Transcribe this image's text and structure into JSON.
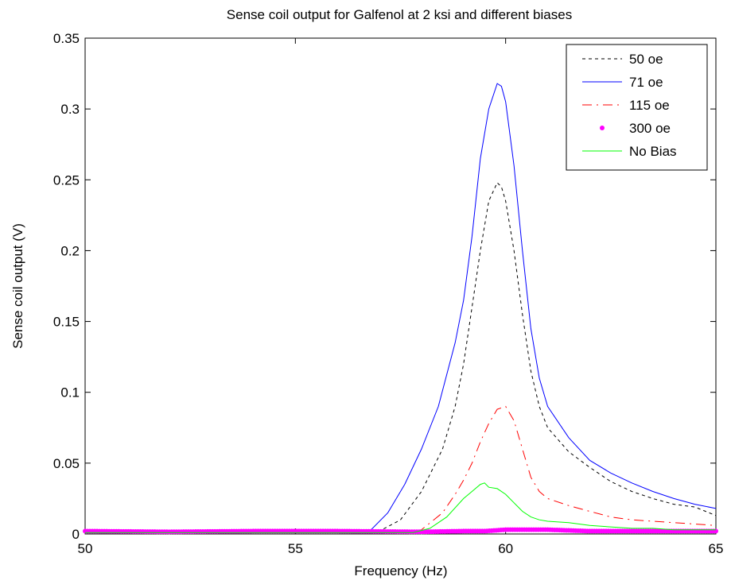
{
  "chart_data": {
    "type": "line",
    "title": "Sense coil output for Galfenol at 2 ksi and different biases",
    "xlabel": "Frequency (Hz)",
    "ylabel": "Sense coil output (V)",
    "xlim": [
      50,
      65
    ],
    "ylim": [
      0,
      0.35
    ],
    "xticks": [
      "50",
      "55",
      "60",
      "65"
    ],
    "yticks": [
      "0",
      "0.05",
      "0.1",
      "0.15",
      "0.2",
      "0.25",
      "0.3",
      "0.35"
    ],
    "grid": false,
    "legend_position": "top-right",
    "series": [
      {
        "name": "50 oe",
        "style": "dashed",
        "color": "#000000",
        "x": [
          50,
          55,
          57.0,
          57.5,
          58.0,
          58.5,
          58.8,
          59.0,
          59.2,
          59.4,
          59.6,
          59.8,
          59.9,
          60.0,
          60.2,
          60.4,
          60.6,
          60.8,
          61.0,
          61.5,
          62.0,
          62.5,
          63.0,
          63.5,
          64.0,
          64.5,
          65.0
        ],
        "y": [
          0.001,
          0.001,
          0.002,
          0.01,
          0.03,
          0.06,
          0.09,
          0.12,
          0.16,
          0.2,
          0.235,
          0.248,
          0.245,
          0.235,
          0.2,
          0.155,
          0.115,
          0.09,
          0.075,
          0.058,
          0.047,
          0.037,
          0.03,
          0.025,
          0.021,
          0.019,
          0.013
        ]
      },
      {
        "name": "71 oe",
        "style": "solid",
        "color": "#0000ff",
        "x": [
          50,
          55,
          56.8,
          57.2,
          57.6,
          58.0,
          58.4,
          58.8,
          59.0,
          59.2,
          59.4,
          59.6,
          59.8,
          59.9,
          60.0,
          60.2,
          60.4,
          60.6,
          60.8,
          61.0,
          61.5,
          62.0,
          62.5,
          63.0,
          63.5,
          64.0,
          64.5,
          65.0
        ],
        "y": [
          0.001,
          0.001,
          0.003,
          0.015,
          0.035,
          0.06,
          0.09,
          0.135,
          0.165,
          0.21,
          0.265,
          0.3,
          0.318,
          0.316,
          0.305,
          0.26,
          0.2,
          0.145,
          0.11,
          0.09,
          0.068,
          0.052,
          0.043,
          0.036,
          0.03,
          0.025,
          0.021,
          0.018
        ]
      },
      {
        "name": "115 oe",
        "style": "dash-dot",
        "color": "#ff0000",
        "x": [
          50,
          57.5,
          58.0,
          58.5,
          58.8,
          59.0,
          59.2,
          59.4,
          59.6,
          59.8,
          60.0,
          60.2,
          60.4,
          60.6,
          60.8,
          61.0,
          61.5,
          62.0,
          62.5,
          63.0,
          63.5,
          64.0,
          64.5,
          65.0
        ],
        "y": [
          0.001,
          0.001,
          0.003,
          0.015,
          0.028,
          0.038,
          0.05,
          0.065,
          0.078,
          0.088,
          0.09,
          0.08,
          0.06,
          0.04,
          0.03,
          0.025,
          0.02,
          0.016,
          0.012,
          0.01,
          0.009,
          0.008,
          0.007,
          0.006
        ]
      },
      {
        "name": "300 oe",
        "style": "markers",
        "color": "#ff00ff",
        "x": [
          50,
          52,
          54,
          56,
          58,
          59,
          59.5,
          60,
          60.5,
          61,
          61.5,
          62,
          63,
          64,
          65
        ],
        "y": [
          0.002,
          0.0015,
          0.002,
          0.002,
          0.0015,
          0.002,
          0.002,
          0.003,
          0.003,
          0.003,
          0.0025,
          0.002,
          0.002,
          0.002,
          0.002
        ]
      },
      {
        "name": "No Bias",
        "style": "solid",
        "color": "#00ff00",
        "x": [
          50,
          57.8,
          58.2,
          58.6,
          59.0,
          59.2,
          59.4,
          59.5,
          59.6,
          59.8,
          60.0,
          60.2,
          60.4,
          60.6,
          60.8,
          61.0,
          61.5,
          62.0,
          62.5,
          63.0,
          63.5,
          64.0,
          64.5,
          65.0
        ],
        "y": [
          0.001,
          0.001,
          0.004,
          0.012,
          0.025,
          0.03,
          0.035,
          0.036,
          0.033,
          0.032,
          0.028,
          0.022,
          0.016,
          0.012,
          0.01,
          0.009,
          0.008,
          0.006,
          0.005,
          0.004,
          0.004,
          0.003,
          0.003,
          0.003
        ]
      }
    ]
  }
}
